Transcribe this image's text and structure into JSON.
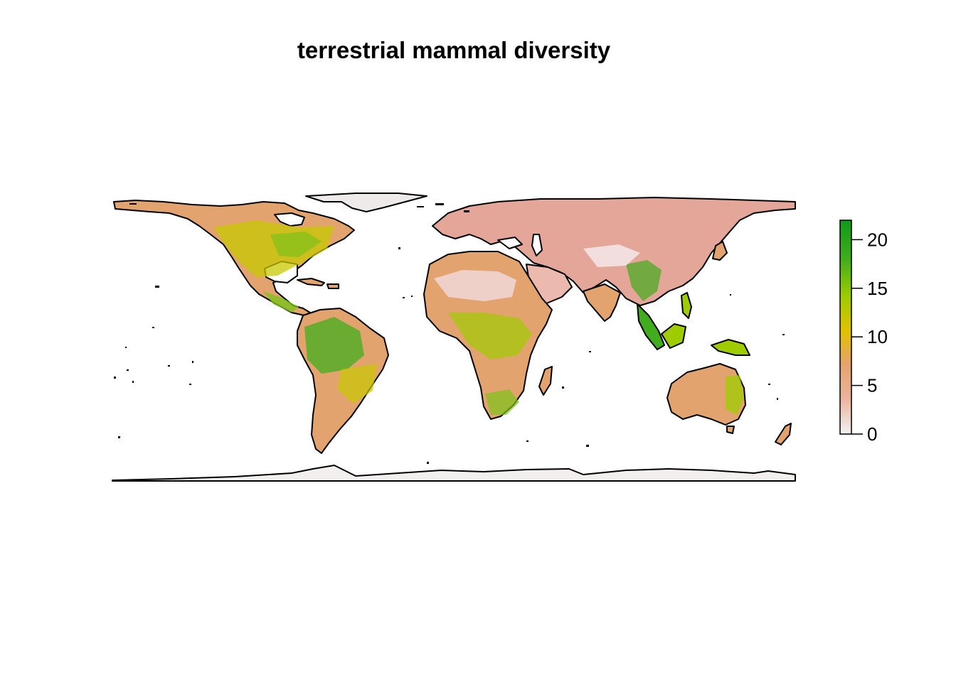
{
  "title": "terrestrial mammal diversity",
  "legend": {
    "ticks": [
      "0",
      "5",
      "10",
      "15",
      "20"
    ],
    "tick_values": [
      0,
      5,
      10,
      15,
      20
    ],
    "range": [
      0,
      22
    ],
    "colors": [
      "#f2f2f2",
      "#ebb29b",
      "#e5a36c",
      "#e2c100",
      "#9fcc00",
      "#41ad1c",
      "#0f9a1a"
    ]
  },
  "chart_data": {
    "type": "heatmap",
    "title": "terrestrial mammal diversity",
    "value_range": [
      0,
      22
    ],
    "colorbar_ticks": [
      0,
      5,
      10,
      15,
      20
    ],
    "colorbar_position": "right",
    "grid": false,
    "regions": [
      {
        "region": "Antarctica",
        "value": 0
      },
      {
        "region": "Greenland",
        "value": 0
      },
      {
        "region": "Northern Eurasia",
        "value": 4
      },
      {
        "region": "Sahara Desert",
        "value": 3
      },
      {
        "region": "Arabia",
        "value": 3
      },
      {
        "region": "Tibetan Plateau",
        "value": 3
      },
      {
        "region": "Canada",
        "value": 7
      },
      {
        "region": "United States",
        "value": 12
      },
      {
        "region": "Eastern United States",
        "value": 16
      },
      {
        "region": "Central America",
        "value": 16
      },
      {
        "region": "Amazon Basin",
        "value": 19
      },
      {
        "region": "Patagonia",
        "value": 6
      },
      {
        "region": "Central Africa",
        "value": 13
      },
      {
        "region": "East Africa",
        "value": 16
      },
      {
        "region": "Southern Africa",
        "value": 15
      },
      {
        "region": "India",
        "value": 8
      },
      {
        "region": "Southeast Asia",
        "value": 18
      },
      {
        "region": "Borneo",
        "value": 16
      },
      {
        "region": "Australia interior",
        "value": 7
      },
      {
        "region": "Eastern Australia",
        "value": 15
      }
    ]
  }
}
